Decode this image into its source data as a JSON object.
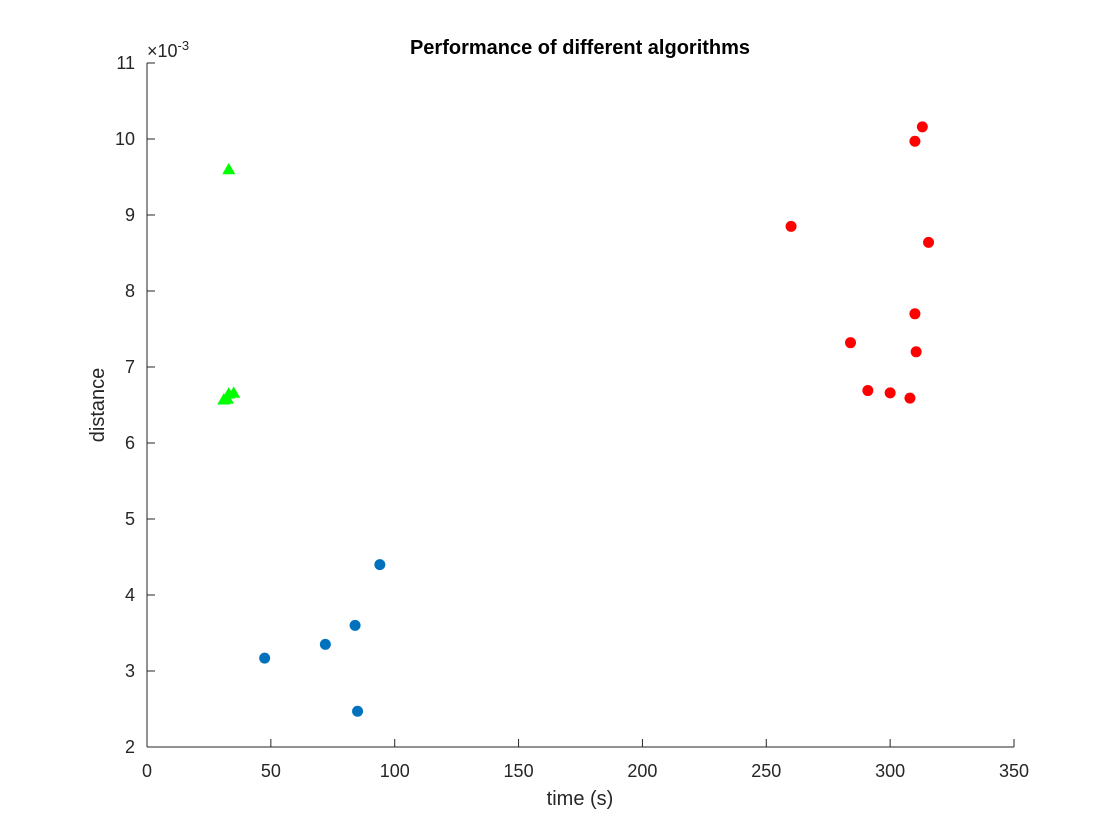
{
  "chart_data": {
    "type": "scatter",
    "title": "Performance of different algorithms",
    "xlabel": "time (s)",
    "ylabel": "distance",
    "xlim": [
      0,
      350
    ],
    "ylim": [
      2,
      11
    ],
    "xticks": [
      0,
      50,
      100,
      150,
      200,
      250,
      300,
      350
    ],
    "yticks": [
      2,
      3,
      4,
      5,
      6,
      7,
      8,
      9,
      10,
      11
    ],
    "y_exponent_label": "×10",
    "y_exponent_power": "-3",
    "grid": false,
    "series": [
      {
        "color": "#0072BD",
        "marker": "circle",
        "x": [
          47.5,
          72,
          84,
          85,
          94
        ],
        "y": [
          3.17,
          3.35,
          3.6,
          2.47,
          4.4
        ]
      },
      {
        "color": "#00FF00",
        "marker": "triangle",
        "x": [
          33,
          33,
          35,
          31,
          32.5
        ],
        "y": [
          9.6,
          6.65,
          6.66,
          6.57,
          6.58
        ]
      },
      {
        "color": "#FF0000",
        "marker": "circle",
        "x": [
          260,
          284,
          291,
          300,
          308,
          310,
          310,
          310.5,
          313,
          315.5
        ],
        "y": [
          8.85,
          7.32,
          6.69,
          6.66,
          6.59,
          7.7,
          9.97,
          7.2,
          10.16,
          8.64
        ]
      }
    ]
  }
}
